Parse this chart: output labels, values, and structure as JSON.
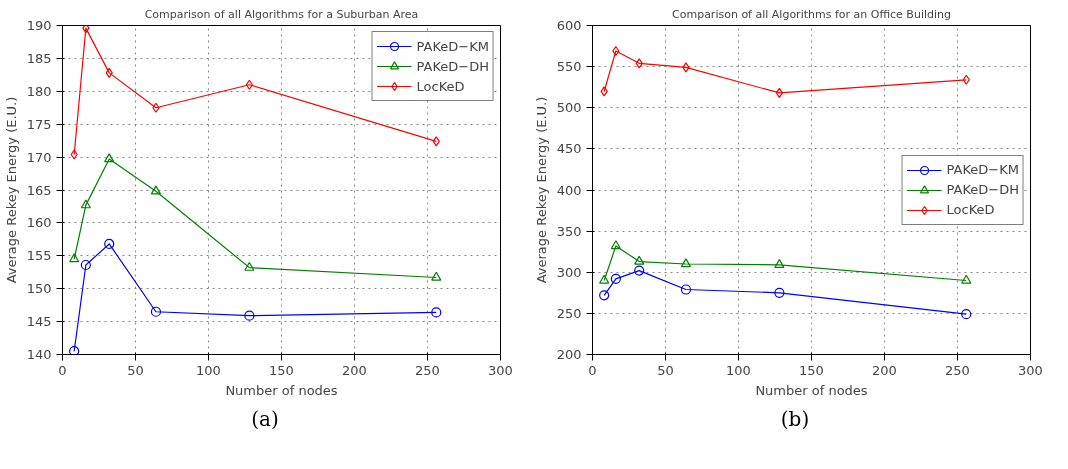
{
  "chart_data": [
    {
      "type": "line",
      "title": "Comparison of all Algorithms for a Suburban Area",
      "xlabel": "Number of nodes",
      "ylabel": "Average Rekey Energy (E.U.)",
      "x": [
        8,
        16,
        32,
        64,
        128,
        256
      ],
      "xlim": [
        0,
        300
      ],
      "xticks": [
        0,
        50,
        100,
        150,
        200,
        250,
        300
      ],
      "ylim": [
        140,
        190
      ],
      "yticks": [
        140,
        145,
        150,
        155,
        160,
        165,
        170,
        175,
        180,
        185,
        190
      ],
      "grid": true,
      "legend": "top right",
      "line_style": "solid",
      "annotations": [
        "(a)"
      ],
      "series": [
        {
          "name": "PAKeD−KM",
          "color": "#0000ff",
          "marker": "circle",
          "values": [
            140.5,
            153.6,
            156.8,
            146.5,
            145.9,
            146.4
          ]
        },
        {
          "name": "PAKeD−DH",
          "color": "#008000",
          "marker": "triangle",
          "values": [
            154.5,
            162.7,
            169.7,
            164.8,
            153.2,
            151.7
          ]
        },
        {
          "name": "LocKeD",
          "color": "#ff0000",
          "marker": "diamond",
          "values": [
            170.4,
            189.6,
            182.8,
            177.5,
            181.0,
            172.4
          ]
        }
      ]
    },
    {
      "type": "line",
      "title": "Comparison of all Algorithms for an Office Building",
      "xlabel": "Number of nodes",
      "ylabel": "Average Rekey Energy (E.U.)",
      "x": [
        8,
        16,
        32,
        64,
        128,
        256
      ],
      "xlim": [
        0,
        300
      ],
      "xticks": [
        0,
        50,
        100,
        150,
        200,
        250,
        300
      ],
      "ylim": [
        200,
        600
      ],
      "yticks": [
        200,
        250,
        300,
        350,
        400,
        450,
        500,
        550,
        600
      ],
      "grid": true,
      "legend": "right",
      "line_style": "solid",
      "annotations": [
        "(b)"
      ],
      "series": [
        {
          "name": "PAKeD−KM",
          "color": "#0000ff",
          "marker": "circle",
          "values": [
            272,
            292,
            302,
            279,
            275,
            249
          ]
        },
        {
          "name": "PAKeD−DH",
          "color": "#008000",
          "marker": "triangle",
          "values": [
            290,
            332,
            313,
            310,
            309,
            290
          ]
        },
        {
          "name": "LocKeD",
          "color": "#ff0000",
          "marker": "diamond",
          "values": [
            520,
            569,
            554,
            549,
            518,
            534
          ]
        }
      ]
    }
  ]
}
